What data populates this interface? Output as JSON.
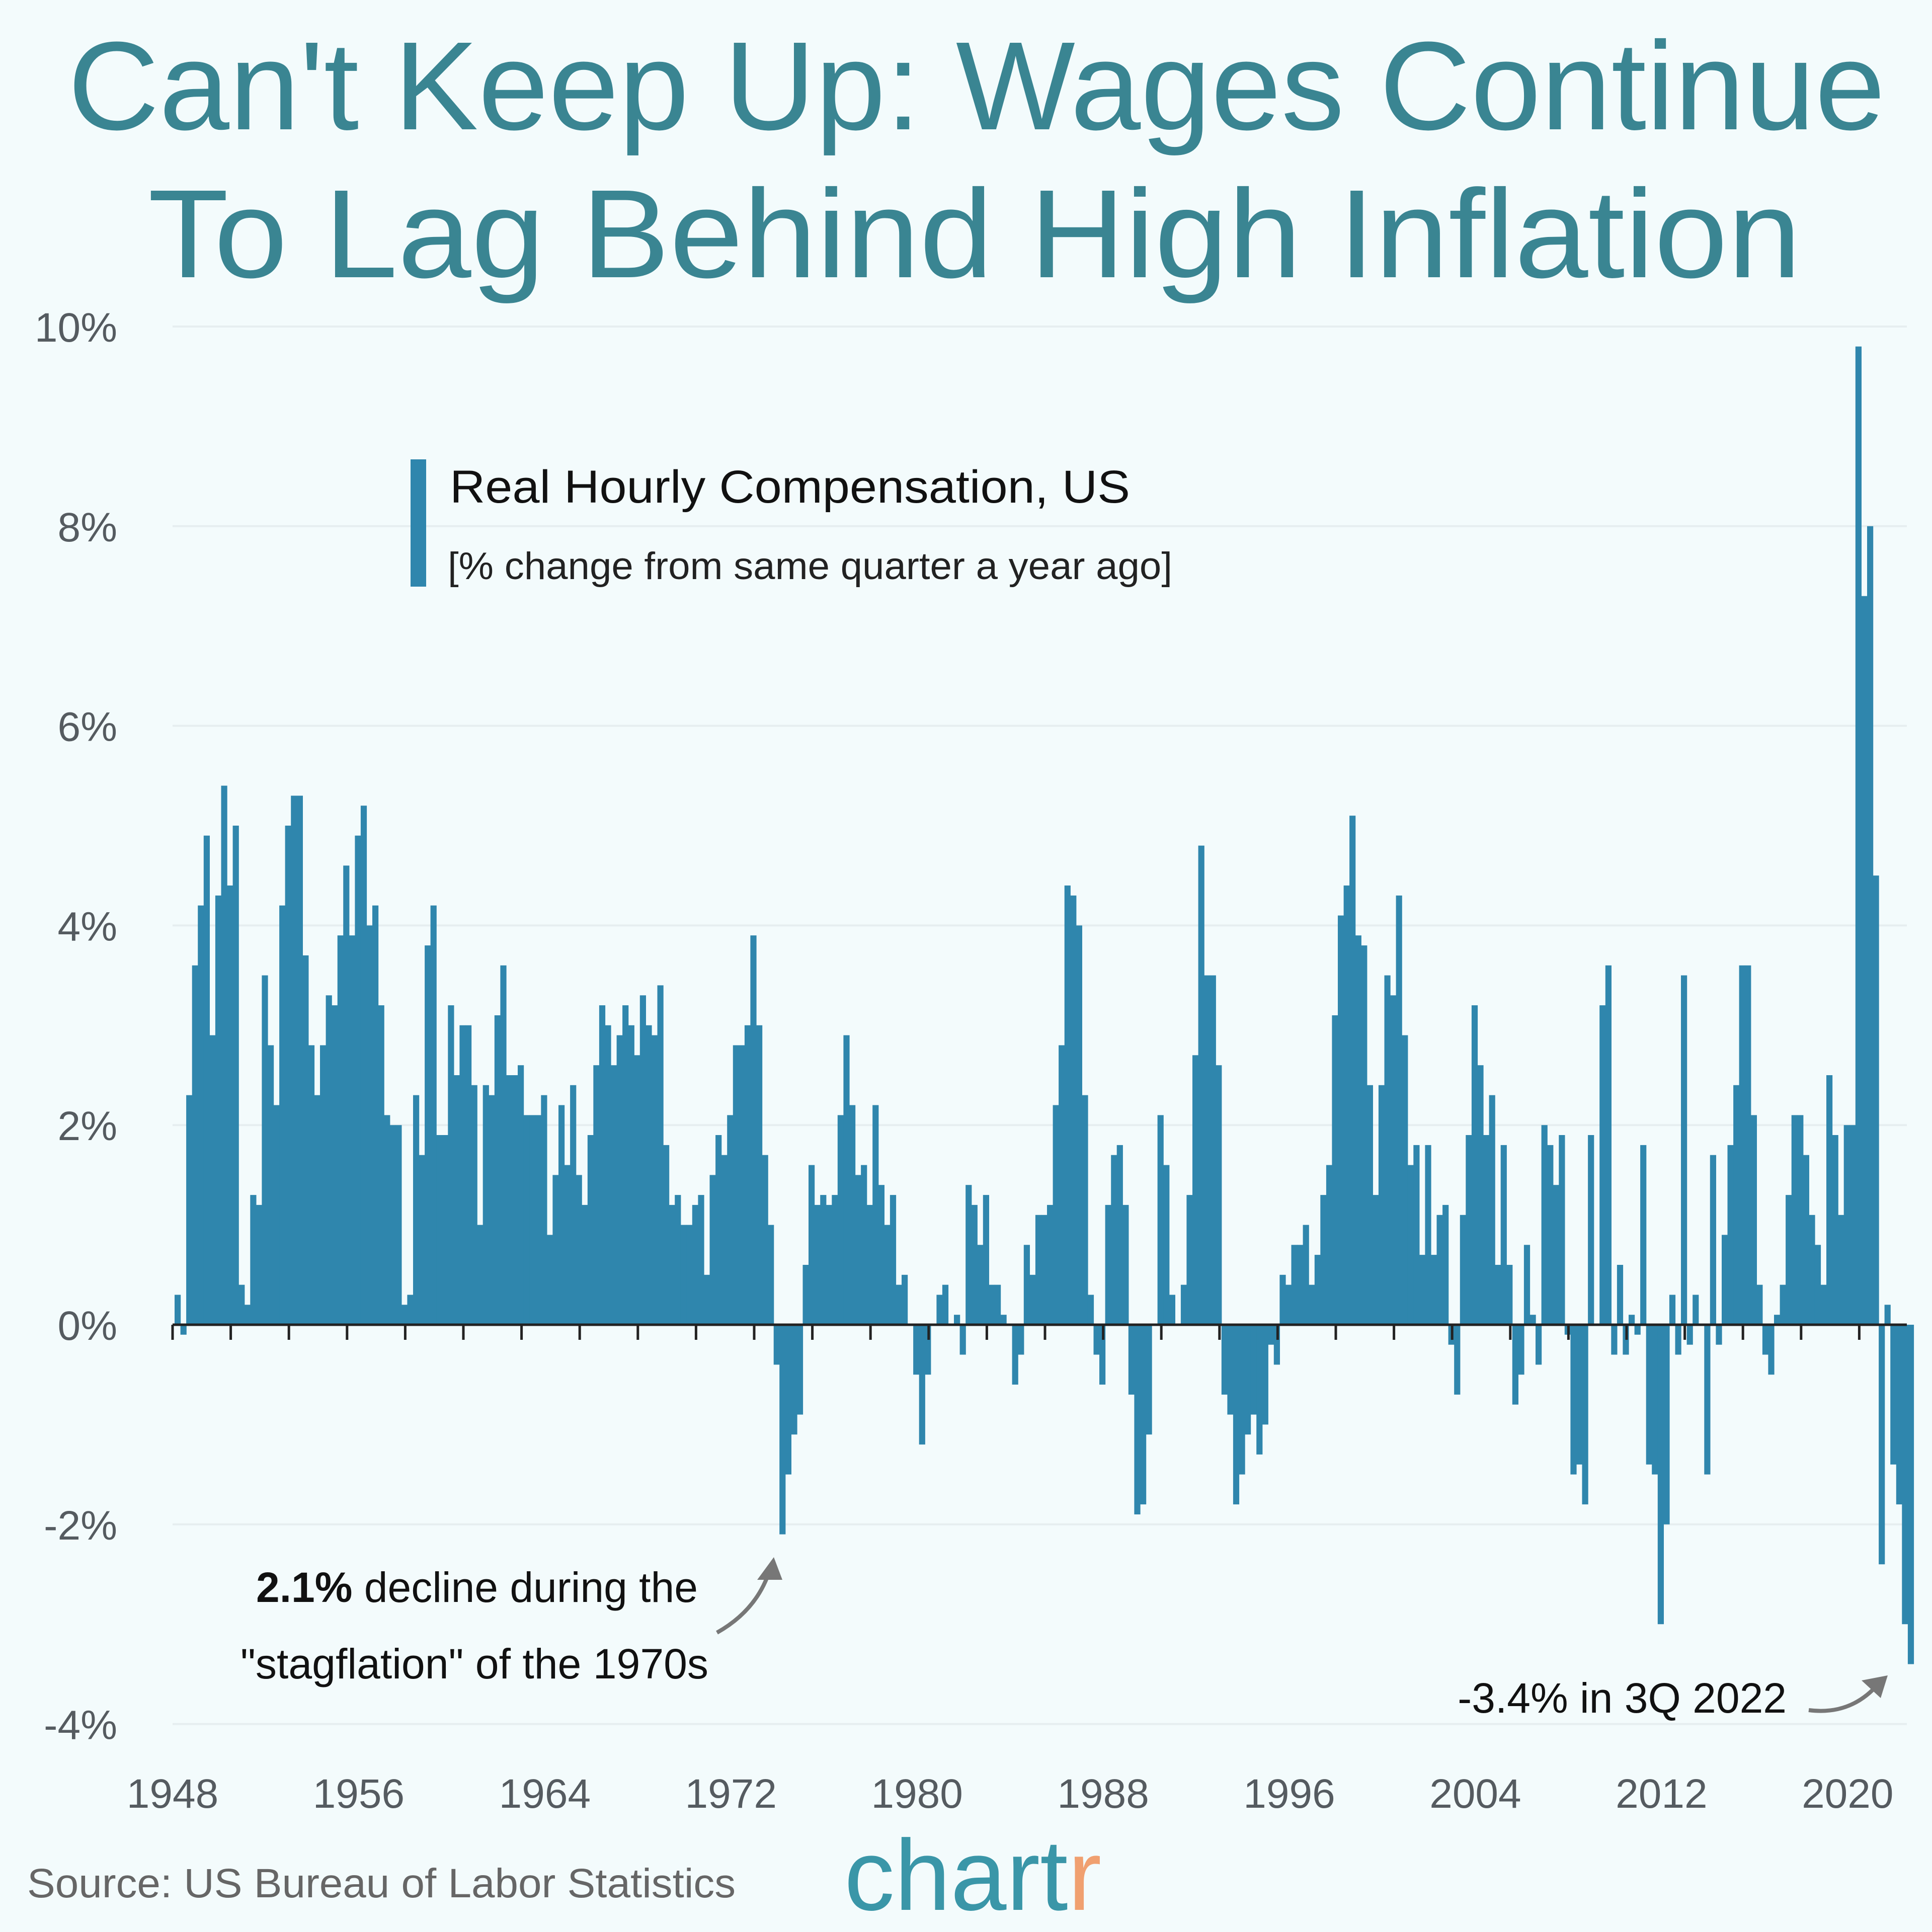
{
  "title": {
    "line1": "Can't Keep Up: Wages Continue",
    "line2": "To Lag Behind High Inflation"
  },
  "legend": {
    "title": "Real Hourly Compensation, US",
    "subtitle": "[% change from same quarter a year ago]"
  },
  "annotations": {
    "stagflation_bold": "2.1%",
    "stagflation_line1": " decline during the",
    "stagflation_line2": "\"stagflation\" of the 1970s",
    "latest": "-3.4% in 3Q 2022"
  },
  "source": "Source: US Bureau of Labor Statistics",
  "logo": {
    "main": "chart",
    "accent": "r"
  },
  "colors": {
    "bar": "#2f86ad",
    "title": "#3a8592",
    "logo": "#3a96a8",
    "logo_accent": "#f0a070",
    "background": "#f3fbfc"
  },
  "chart_data": {
    "type": "bar",
    "frequency": "quarterly",
    "start": "1948 Q1",
    "end": "2022 Q3",
    "series": [
      {
        "name": "Real Hourly Compensation, US",
        "values": [
          0.3,
          -0.1,
          2.3,
          3.6,
          4.2,
          4.9,
          2.9,
          4.3,
          5.4,
          4.4,
          5.0,
          0.4,
          0.2,
          1.3,
          1.2,
          3.5,
          2.8,
          2.2,
          4.2,
          5.0,
          5.3,
          5.3,
          3.7,
          2.8,
          2.3,
          2.8,
          3.3,
          3.2,
          3.9,
          4.6,
          3.9,
          4.9,
          5.2,
          4.0,
          4.2,
          3.2,
          2.1,
          2.0,
          2.0,
          0.2,
          0.3,
          2.3,
          1.7,
          3.8,
          4.2,
          1.9,
          1.9,
          3.2,
          2.5,
          3.0,
          3.0,
          2.4,
          1.0,
          2.4,
          2.3,
          3.1,
          3.6,
          2.5,
          2.5,
          2.6,
          2.1,
          2.1,
          2.1,
          2.3,
          0.9,
          1.5,
          2.2,
          1.6,
          2.4,
          1.5,
          1.2,
          1.9,
          2.6,
          3.2,
          3.0,
          2.6,
          2.9,
          3.2,
          3.0,
          2.7,
          3.3,
          3.0,
          2.9,
          3.4,
          1.8,
          1.2,
          1.3,
          1.0,
          1.0,
          1.2,
          1.3,
          0.5,
          1.5,
          1.9,
          1.7,
          2.1,
          2.8,
          2.8,
          3.0,
          3.9,
          3.0,
          1.7,
          1.0,
          -0.4,
          -2.1,
          -1.5,
          -1.1,
          -0.9,
          0.6,
          1.6,
          1.2,
          1.3,
          1.2,
          1.3,
          2.1,
          2.9,
          2.2,
          1.5,
          1.6,
          1.2,
          2.2,
          1.4,
          1.0,
          1.3,
          0.4,
          0.5,
          0.0,
          -0.5,
          -1.2,
          -0.5,
          0.0,
          0.3,
          0.4,
          0.0,
          0.1,
          -0.3,
          1.4,
          1.2,
          0.8,
          1.3,
          0.4,
          0.4,
          0.1,
          0.0,
          -0.6,
          -0.3,
          0.8,
          0.5,
          1.1,
          1.1,
          1.2,
          2.2,
          2.8,
          4.4,
          4.3,
          4.0,
          2.3,
          0.3,
          -0.3,
          -0.6,
          1.2,
          1.7,
          1.8,
          1.2,
          -0.7,
          -1.9,
          -1.8,
          -1.1,
          0.0,
          2.1,
          1.6,
          0.3,
          0.0,
          0.4,
          1.3,
          2.7,
          4.8,
          3.5,
          3.5,
          2.6,
          -0.7,
          -0.9,
          -1.8,
          -1.5,
          -1.1,
          -0.9,
          -1.3,
          -1.0,
          -0.2,
          -0.4,
          0.5,
          0.4,
          0.8,
          0.8,
          1.0,
          0.4,
          0.7,
          1.3,
          1.6,
          3.1,
          4.1,
          4.4,
          5.1,
          3.9,
          3.8,
          2.4,
          1.3,
          2.4,
          3.5,
          3.3,
          4.3,
          2.9,
          1.6,
          1.8,
          0.7,
          1.8,
          0.7,
          1.1,
          1.2,
          -0.2,
          -0.7,
          1.1,
          1.9,
          3.2,
          2.6,
          1.9,
          2.3,
          0.6,
          1.8,
          0.6,
          -0.8,
          -0.5,
          0.8,
          0.1,
          -0.4,
          2.0,
          1.8,
          1.4,
          1.9,
          -0.1,
          -1.5,
          -1.4,
          -1.8,
          1.9,
          0.0,
          3.2,
          3.6,
          -0.3,
          0.6,
          -0.3,
          0.1,
          -0.1,
          1.8,
          -1.4,
          -1.5,
          -3.0,
          -2.0,
          0.3,
          -0.3,
          3.5,
          -0.2,
          0.3,
          0.0,
          -1.5,
          1.7,
          -0.2,
          0.9,
          1.8,
          2.4,
          3.6,
          3.6,
          2.1,
          0.4,
          -0.3,
          -0.5,
          0.1,
          0.4,
          1.3,
          2.1,
          2.1,
          1.7,
          1.1,
          0.8,
          0.4,
          2.5,
          1.9,
          1.1,
          2.0,
          2.0,
          9.8,
          7.3,
          8.0,
          4.5,
          -2.4,
          0.2,
          -1.4,
          -1.8,
          -3.0,
          -3.4
        ]
      }
    ],
    "ylim": [
      -4,
      10
    ],
    "y_tick_labels": [
      "10%",
      "8%",
      "6%",
      "4%",
      "2%",
      "0%",
      "-2%",
      "-4%"
    ],
    "y_ticks": [
      10,
      8,
      6,
      4,
      2,
      0,
      -2,
      -4
    ],
    "x_tick_labels": [
      "1948",
      "1956",
      "1964",
      "1972",
      "1980",
      "1988",
      "1996",
      "2004",
      "2012",
      "2020"
    ],
    "x_ticks": [
      1948,
      1956,
      1964,
      1972,
      1980,
      1988,
      1996,
      2004,
      2012,
      2020
    ],
    "grid": "horizontal",
    "legend_position": "top-left"
  }
}
